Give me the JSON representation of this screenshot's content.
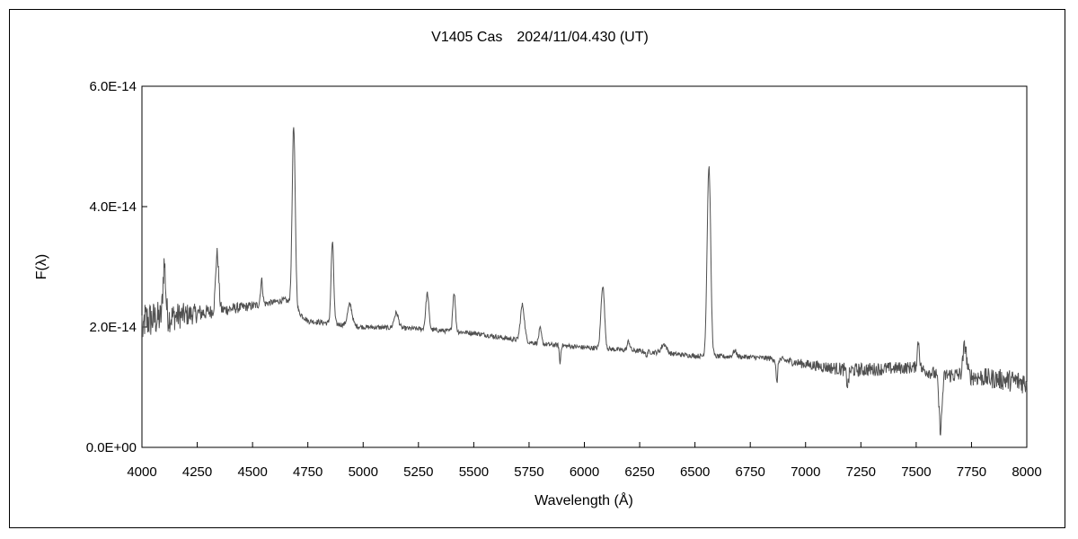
{
  "chart_data": {
    "type": "line",
    "title": "V1405 Cas　2024/11/04.430 (UT)",
    "xlabel": "Wavelength (Å)",
    "ylabel": "F(λ)",
    "xlim": [
      4000,
      8000
    ],
    "ylim": [
      0,
      6e-14
    ],
    "x_ticks": [
      "4000",
      "4250",
      "4500",
      "4750",
      "5000",
      "5250",
      "5500",
      "5750",
      "6000",
      "6250",
      "6500",
      "6750",
      "7000",
      "7250",
      "7500",
      "7750",
      "8000"
    ],
    "y_ticks": [
      "0.0E+00",
      "2.0E-14",
      "4.0E-14",
      "6.0E-14"
    ],
    "y_tick_values": [
      0,
      2e-14,
      4e-14,
      6e-14
    ],
    "grid": false,
    "line_color": "#505050",
    "series": [
      {
        "continuum": [
          [
            4000,
            2.1e-14
          ],
          [
            4300,
            2.25e-14
          ],
          [
            4500,
            2.35e-14
          ],
          [
            4650,
            2.45e-14
          ],
          [
            4750,
            2.1e-14
          ],
          [
            5000,
            2e-14
          ],
          [
            5250,
            1.97e-14
          ],
          [
            5500,
            1.9e-14
          ],
          [
            5800,
            1.72e-14
          ],
          [
            6000,
            1.66e-14
          ],
          [
            6250,
            1.6e-14
          ],
          [
            6500,
            1.52e-14
          ],
          [
            6750,
            1.5e-14
          ],
          [
            6870,
            1.47e-14
          ],
          [
            7000,
            1.38e-14
          ],
          [
            7200,
            1.28e-14
          ],
          [
            7500,
            1.33e-14
          ],
          [
            7600,
            1.2e-14
          ],
          [
            7700,
            1.2e-14
          ],
          [
            8000,
            1.08e-14
          ]
        ],
        "lines": [
          {
            "center": 4101,
            "peak": 9e-15,
            "width": 6
          },
          {
            "center": 4340,
            "peak": 9.5e-15,
            "width": 7
          },
          {
            "center": 4541,
            "peak": 4e-15,
            "width": 5
          },
          {
            "center": 4686,
            "peak": 3e-14,
            "width": 7
          },
          {
            "center": 4861,
            "peak": 1.35e-14,
            "width": 6
          },
          {
            "center": 4940,
            "peak": 3.5e-15,
            "width": 10
          },
          {
            "center": 5150,
            "peak": 2.5e-15,
            "width": 10
          },
          {
            "center": 5290,
            "peak": 6e-15,
            "width": 7
          },
          {
            "center": 5411,
            "peak": 6.5e-15,
            "width": 6
          },
          {
            "center": 5720,
            "peak": 6e-15,
            "width": 9
          },
          {
            "center": 5800,
            "peak": 2.5e-15,
            "width": 6
          },
          {
            "center": 6083,
            "peak": 1.05e-14,
            "width": 8
          },
          {
            "center": 6200,
            "peak": 1.5e-15,
            "width": 6
          },
          {
            "center": 6360,
            "peak": 1.5e-15,
            "width": 12
          },
          {
            "center": 6563,
            "peak": 3.15e-14,
            "width": 8
          },
          {
            "center": 6680,
            "peak": 1e-15,
            "width": 8
          },
          {
            "center": 7510,
            "peak": 4.5e-15,
            "width": 5
          },
          {
            "center": 7720,
            "peak": 5e-15,
            "width": 8
          }
        ],
        "absorptions": [
          {
            "center": 5890,
            "depth": 3e-15,
            "width": 3
          },
          {
            "center": 6280,
            "depth": 1e-15,
            "width": 3
          },
          {
            "center": 6870,
            "depth": 4e-15,
            "width": 4
          },
          {
            "center": 7190,
            "depth": 2.5e-15,
            "width": 5
          },
          {
            "center": 7610,
            "depth": 9e-15,
            "width": 7
          },
          {
            "center": 4005,
            "depth": 4e-15,
            "width": 2
          }
        ],
        "noise": [
          [
            4000,
            3.5e-15
          ],
          [
            4300,
            1.2e-15
          ],
          [
            4600,
            5e-16
          ],
          [
            5000,
            4e-16
          ],
          [
            6000,
            4e-16
          ],
          [
            6800,
            4e-16
          ],
          [
            7200,
            1.2e-15
          ],
          [
            7500,
            1e-15
          ],
          [
            8000,
            2e-15
          ]
        ]
      }
    ]
  }
}
